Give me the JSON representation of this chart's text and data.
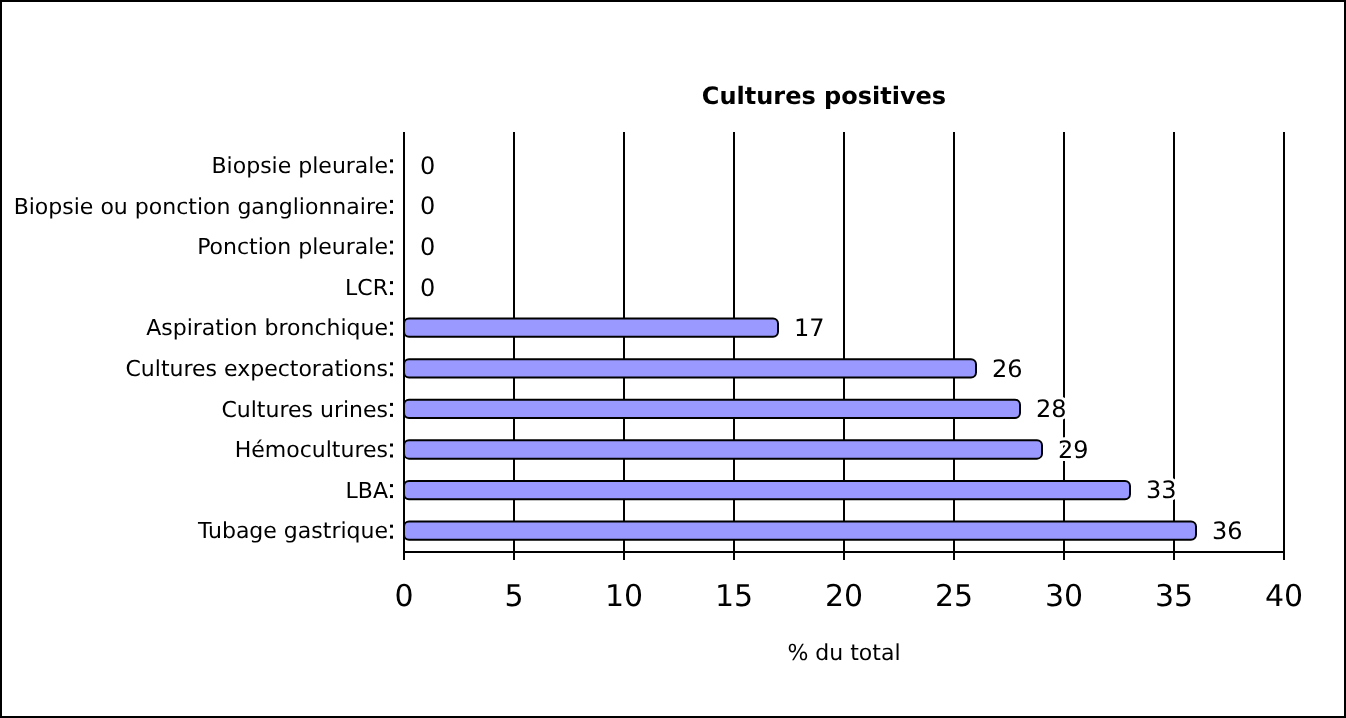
{
  "chart_data": {
    "type": "bar",
    "orientation": "horizontal",
    "title": "Cultures positives",
    "xlabel": "% du total",
    "categories": [
      "Biopsie pleurale",
      "Biopsie ou ponction ganglionnaire",
      "Ponction pleurale",
      "LCR",
      "Aspiration bronchique",
      "Cultures expectorations",
      "Cultures urines",
      "Hémocultures",
      "LBA",
      "Tubage gastrique"
    ],
    "values": [
      0,
      0,
      0,
      0,
      17,
      26,
      28,
      29,
      33,
      36
    ],
    "color": "#9999ff",
    "xlim": [
      0,
      40
    ],
    "xticks": [
      0,
      5,
      10,
      15,
      20,
      25,
      30,
      35,
      40
    ],
    "grid": "x",
    "data_labels": true
  }
}
